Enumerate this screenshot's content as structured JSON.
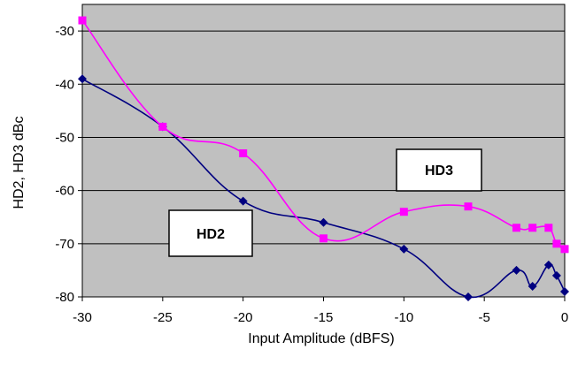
{
  "chart_data": {
    "type": "line",
    "title": "",
    "xlabel": "Input Amplitude (dBFS)",
    "ylabel": "HD2, HD3 dBc",
    "xlim": [
      -30,
      0
    ],
    "ylim": [
      -80,
      -25
    ],
    "x_ticks": [
      "-30",
      "-25",
      "-20",
      "-15",
      "-10",
      "-5",
      "0"
    ],
    "y_ticks": [
      "-30",
      "-40",
      "-50",
      "-60",
      "-70",
      "-80"
    ],
    "grid": true,
    "plot_background": "#c0c0c0",
    "legend": "none",
    "series": [
      {
        "name": "HD2",
        "color": "#000080",
        "marker": "diamond",
        "points": [
          [
            -30,
            -39
          ],
          [
            -25,
            -48
          ],
          [
            -20,
            -62
          ],
          [
            -15,
            -66
          ],
          [
            -10,
            -71
          ],
          [
            -6,
            -80
          ],
          [
            -3,
            -75
          ],
          [
            -2,
            -78
          ],
          [
            -1,
            -74
          ],
          [
            -0.5,
            -76
          ],
          [
            0,
            -79
          ]
        ]
      },
      {
        "name": "HD3",
        "color": "#ff00ff",
        "marker": "square",
        "points": [
          [
            -30,
            -28
          ],
          [
            -25,
            -48
          ],
          [
            -20,
            -53
          ],
          [
            -15,
            -69
          ],
          [
            -10,
            -64
          ],
          [
            -6,
            -63
          ],
          [
            -3,
            -67
          ],
          [
            -2,
            -67
          ],
          [
            -1,
            -67
          ],
          [
            -0.5,
            -70
          ],
          [
            0,
            -71
          ]
        ]
      }
    ],
    "annotations": [
      {
        "text": "HD2",
        "series": "HD2"
      },
      {
        "text": "HD3",
        "series": "HD3"
      }
    ]
  }
}
